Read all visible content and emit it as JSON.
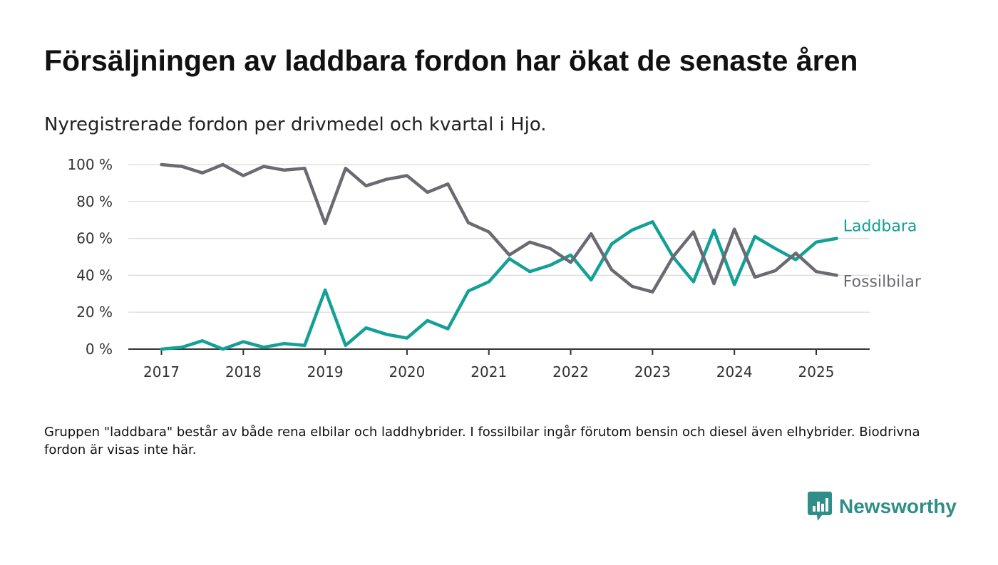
{
  "title": "Försäljningen av laddbara fordon har ökat de senaste åren",
  "subtitle": "Nyregistrerade fordon per drivmedel och kvartal i Hjo.",
  "note": "Gruppen \"laddbara\" består av både rena elbilar och laddhybrider. I fossilbilar ingår förutom bensin och diesel även elhybrider. Biodrivna fordon är visas inte här.",
  "brand": {
    "name": "Newsworthy",
    "icon": "newsworthy-logo-icon",
    "color": "#2f8e87"
  },
  "chart_data": {
    "type": "line",
    "x_start": 2017,
    "x_step": 0.25,
    "x_ticks": [
      2017,
      2018,
      2019,
      2020,
      2021,
      2022,
      2023,
      2024,
      2025
    ],
    "y_ticks": [
      0,
      20,
      40,
      60,
      80,
      100
    ],
    "y_tick_labels": [
      "0 %",
      "20 %",
      "40 %",
      "60 %",
      "80 %",
      "100 %"
    ],
    "ylim": [
      0,
      100
    ],
    "xlim": [
      2016.6,
      2025.67
    ],
    "grid": true,
    "legend": "direct labels at line ends",
    "series": [
      {
        "name": "Laddbara",
        "color": "#13a096",
        "values": [
          0,
          1,
          4.5,
          0,
          4,
          1,
          3,
          2,
          32,
          2,
          11.5,
          8,
          6,
          15.5,
          11,
          31.5,
          36.5,
          49,
          42,
          45.5,
          51,
          37.5,
          57,
          64.5,
          69,
          50,
          36.5,
          64.5,
          35,
          61,
          54.5,
          48.5,
          58,
          60
        ]
      },
      {
        "name": "Fossilbilar",
        "color": "#6b6a72",
        "values": [
          100,
          99,
          95.5,
          100,
          94,
          99,
          97,
          98,
          68,
          98,
          88.5,
          92,
          94,
          85,
          89.5,
          68.5,
          63.5,
          51,
          58,
          54.5,
          47,
          62.5,
          43,
          34,
          31,
          50,
          63.5,
          35.5,
          65,
          39,
          42.5,
          52,
          42,
          40
        ]
      }
    ]
  }
}
